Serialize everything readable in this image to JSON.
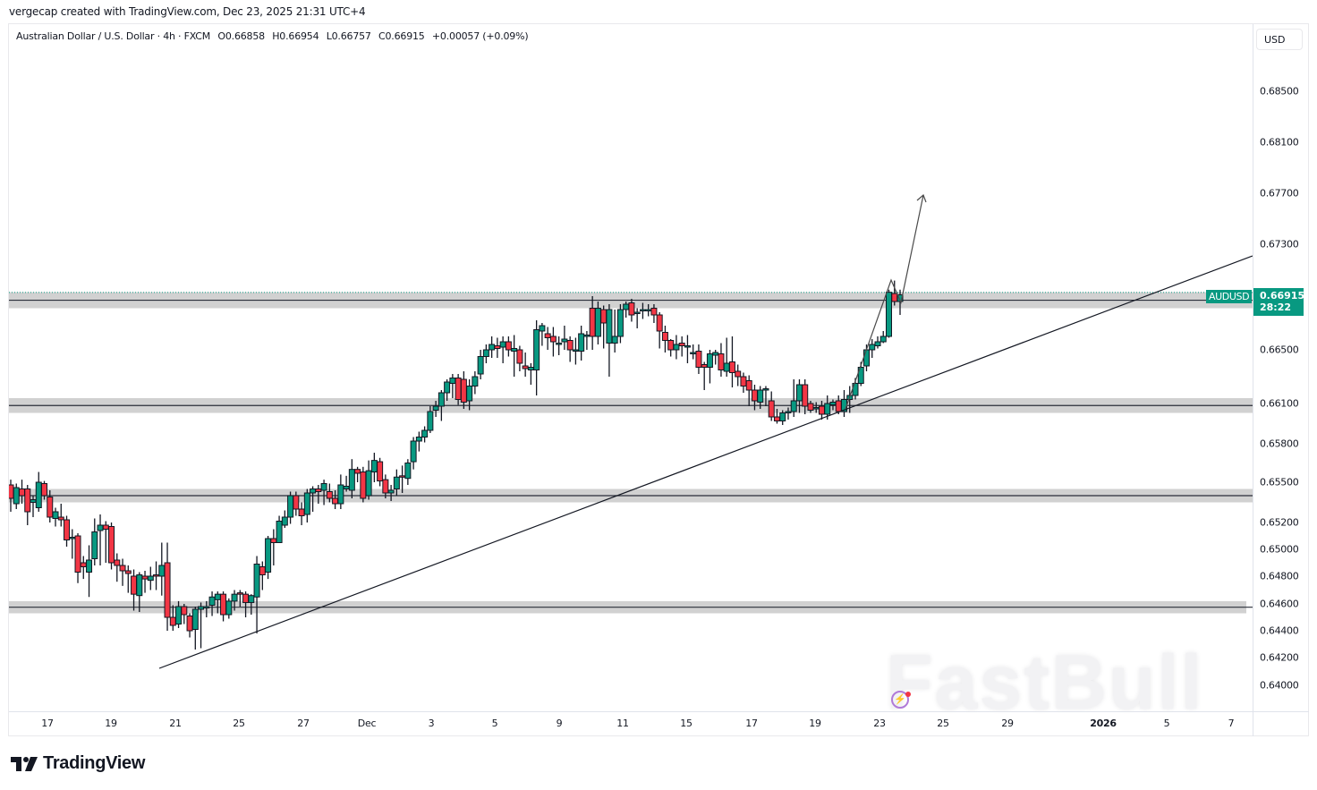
{
  "header": {
    "credit": "vergecap created with TradingView.com, Dec 23, 2025 21:31 UTC+4"
  },
  "legend": {
    "symbol_name": "Australian Dollar / U.S. Dollar · 4h · FXCM",
    "open": "O0.66858",
    "high": "H0.66954",
    "low": "L0.66757",
    "close": "C0.66915",
    "change": "+0.00057 (+0.09%)"
  },
  "price_axis": {
    "currency_button": "USD",
    "labels": [
      "0.68500",
      "0.68100",
      "0.67700",
      "0.67300",
      "0.66500",
      "0.66100",
      "0.65800",
      "0.65500",
      "0.65200",
      "0.65000",
      "0.64800",
      "0.64600",
      "0.64400",
      "0.64200",
      "0.64000"
    ],
    "current_price": "0.66915",
    "countdown": "28:22",
    "symbol_tag": "AUDUSD"
  },
  "time_axis": {
    "labels": [
      "17",
      "19",
      "21",
      "25",
      "27",
      "Dec",
      "3",
      "5",
      "9",
      "11",
      "15",
      "17",
      "19",
      "23",
      "25",
      "29",
      "2026",
      "5",
      "7"
    ],
    "bold_labels": [
      "2026"
    ]
  },
  "colors": {
    "up": "#089981",
    "down": "#f23645",
    "zone": "#d1d1d1",
    "line": "#131722",
    "price_line": "#089981"
  },
  "footer": {
    "brand": "TradingView"
  },
  "watermark": {
    "text": "FastBull"
  },
  "chart_data": {
    "type": "candlestick",
    "title": "Australian Dollar / U.S. Dollar · 4h · FXCM",
    "symbol": "AUDUSD",
    "timeframe": "4h",
    "xlabel": "",
    "ylabel": "USD",
    "ylim": [
      0.6385,
      0.6875
    ],
    "y_ticks": [
      0.64,
      0.642,
      0.644,
      0.646,
      0.648,
      0.65,
      0.652,
      0.655,
      0.658,
      0.661,
      0.665,
      0.669,
      0.673,
      0.677,
      0.681,
      0.685
    ],
    "x_ticks": [
      "17",
      "19",
      "21",
      "25",
      "27",
      "Dec",
      "3",
      "5",
      "9",
      "11",
      "15",
      "17",
      "19",
      "23",
      "25",
      "29",
      "2026",
      "5",
      "7"
    ],
    "last": {
      "open": 0.66858,
      "high": 0.66954,
      "low": 0.66757,
      "close": 0.66915,
      "change": 0.00057,
      "change_pct": 0.09
    },
    "candles": [
      [
        0.6548,
        0.6538,
        0.6552,
        0.6528
      ],
      [
        0.6534,
        0.6546,
        0.6549,
        0.653
      ],
      [
        0.6545,
        0.654,
        0.6552,
        0.6534
      ],
      [
        0.6545,
        0.6528,
        0.6548,
        0.6518
      ],
      [
        0.6535,
        0.6537,
        0.654,
        0.6524
      ],
      [
        0.6531,
        0.655,
        0.6558,
        0.6528
      ],
      [
        0.6549,
        0.654,
        0.6551,
        0.6537
      ],
      [
        0.6539,
        0.6524,
        0.6544,
        0.652
      ],
      [
        0.6523,
        0.6528,
        0.6531,
        0.6517
      ],
      [
        0.6524,
        0.6522,
        0.6534,
        0.6517
      ],
      [
        0.6522,
        0.6507,
        0.6525,
        0.6502
      ],
      [
        0.6508,
        0.6509,
        0.6515,
        0.6493
      ],
      [
        0.651,
        0.6483,
        0.6512,
        0.6475
      ],
      [
        0.649,
        0.6487,
        0.6495,
        0.6478
      ],
      [
        0.6483,
        0.6492,
        0.6503,
        0.6465
      ],
      [
        0.6493,
        0.6513,
        0.6523,
        0.6488
      ],
      [
        0.6514,
        0.6518,
        0.6526,
        0.6488
      ],
      [
        0.6518,
        0.6515,
        0.6521,
        0.649
      ],
      [
        0.6517,
        0.649,
        0.652,
        0.6485
      ],
      [
        0.6492,
        0.6488,
        0.6497,
        0.6476
      ],
      [
        0.6488,
        0.6484,
        0.6493,
        0.6473
      ],
      [
        0.6484,
        0.6482,
        0.6488,
        0.6468
      ],
      [
        0.648,
        0.6467,
        0.6485,
        0.6455
      ],
      [
        0.6466,
        0.6481,
        0.6483,
        0.6454
      ],
      [
        0.648,
        0.6478,
        0.6484,
        0.6468
      ],
      [
        0.6477,
        0.648,
        0.6487,
        0.647
      ],
      [
        0.6481,
        0.648,
        0.6491,
        0.647
      ],
      [
        0.648,
        0.6488,
        0.6505,
        0.6466
      ],
      [
        0.649,
        0.645,
        0.6505,
        0.644
      ],
      [
        0.645,
        0.6444,
        0.6459,
        0.644
      ],
      [
        0.6445,
        0.6458,
        0.6462,
        0.6442
      ],
      [
        0.6458,
        0.6452,
        0.646,
        0.6445
      ],
      [
        0.6451,
        0.644,
        0.6453,
        0.6435
      ],
      [
        0.6441,
        0.6456,
        0.6458,
        0.6426
      ],
      [
        0.6456,
        0.6458,
        0.6461,
        0.6427
      ],
      [
        0.6458,
        0.6458,
        0.6462,
        0.645
      ],
      [
        0.6459,
        0.6465,
        0.6469,
        0.6451
      ],
      [
        0.6463,
        0.6467,
        0.6469,
        0.6453
      ],
      [
        0.6467,
        0.6452,
        0.6469,
        0.6447
      ],
      [
        0.6452,
        0.6462,
        0.6464,
        0.6449
      ],
      [
        0.6462,
        0.6467,
        0.647,
        0.6455
      ],
      [
        0.6468,
        0.6467,
        0.647,
        0.6458
      ],
      [
        0.6467,
        0.6461,
        0.6469,
        0.645
      ],
      [
        0.6461,
        0.6466,
        0.6467,
        0.6452
      ],
      [
        0.6465,
        0.6489,
        0.6495,
        0.6438
      ],
      [
        0.6487,
        0.6481,
        0.6491,
        0.647
      ],
      [
        0.6483,
        0.6508,
        0.651,
        0.6478
      ],
      [
        0.6508,
        0.6505,
        0.6515,
        0.6488
      ],
      [
        0.6505,
        0.6521,
        0.6525,
        0.6505
      ],
      [
        0.6518,
        0.6524,
        0.6529,
        0.6516
      ],
      [
        0.6524,
        0.654,
        0.6543,
        0.6519
      ],
      [
        0.654,
        0.653,
        0.6543,
        0.6525
      ],
      [
        0.653,
        0.6525,
        0.6535,
        0.6518
      ],
      [
        0.6526,
        0.6542,
        0.6545,
        0.652
      ],
      [
        0.6542,
        0.6545,
        0.6547,
        0.6528
      ],
      [
        0.6545,
        0.6543,
        0.6548,
        0.6534
      ],
      [
        0.6544,
        0.6549,
        0.6552,
        0.6533
      ],
      [
        0.6543,
        0.6538,
        0.6549,
        0.6535
      ],
      [
        0.6538,
        0.6534,
        0.6544,
        0.653
      ],
      [
        0.6534,
        0.6548,
        0.6556,
        0.653
      ],
      [
        0.6545,
        0.6547,
        0.6555,
        0.6543
      ],
      [
        0.6544,
        0.656,
        0.6568,
        0.6538
      ],
      [
        0.656,
        0.6557,
        0.6562,
        0.655
      ],
      [
        0.6558,
        0.6538,
        0.6562,
        0.6535
      ],
      [
        0.654,
        0.6559,
        0.6567,
        0.6537
      ],
      [
        0.6558,
        0.6567,
        0.6573,
        0.655
      ],
      [
        0.6566,
        0.6551,
        0.6569,
        0.6547
      ],
      [
        0.6552,
        0.6542,
        0.6556,
        0.6538
      ],
      [
        0.6542,
        0.6544,
        0.6548,
        0.6536
      ],
      [
        0.6545,
        0.6554,
        0.656,
        0.654
      ],
      [
        0.6555,
        0.6554,
        0.6563,
        0.6542
      ],
      [
        0.6553,
        0.6565,
        0.6568,
        0.6548
      ],
      [
        0.6566,
        0.6582,
        0.6585,
        0.656
      ],
      [
        0.6582,
        0.6585,
        0.6589,
        0.6574
      ],
      [
        0.6585,
        0.659,
        0.6593,
        0.6581
      ],
      [
        0.659,
        0.6604,
        0.6608,
        0.6588
      ],
      [
        0.6605,
        0.6608,
        0.6612,
        0.66
      ],
      [
        0.6608,
        0.6618,
        0.662,
        0.6597
      ],
      [
        0.6618,
        0.6626,
        0.6628,
        0.6612
      ],
      [
        0.6625,
        0.6629,
        0.6632,
        0.6614
      ],
      [
        0.6629,
        0.6613,
        0.6632,
        0.6609
      ],
      [
        0.6628,
        0.6611,
        0.6634,
        0.6606
      ],
      [
        0.6612,
        0.6623,
        0.6628,
        0.6605
      ],
      [
        0.6623,
        0.663,
        0.6634,
        0.6617
      ],
      [
        0.6632,
        0.6645,
        0.665,
        0.6628
      ],
      [
        0.6645,
        0.665,
        0.6654,
        0.664
      ],
      [
        0.665,
        0.6654,
        0.666,
        0.6644
      ],
      [
        0.6653,
        0.6651,
        0.6659,
        0.6644
      ],
      [
        0.6652,
        0.6656,
        0.666,
        0.664
      ],
      [
        0.6656,
        0.665,
        0.666,
        0.6645
      ],
      [
        0.6649,
        0.6651,
        0.6661,
        0.663
      ],
      [
        0.665,
        0.664,
        0.6653,
        0.6634
      ],
      [
        0.6638,
        0.6636,
        0.6648,
        0.663
      ],
      [
        0.6635,
        0.6637,
        0.664,
        0.6624
      ],
      [
        0.6635,
        0.6665,
        0.6672,
        0.6616
      ],
      [
        0.6664,
        0.6668,
        0.667,
        0.6653
      ],
      [
        0.6662,
        0.6659,
        0.6667,
        0.665
      ],
      [
        0.666,
        0.6656,
        0.6667,
        0.6645
      ],
      [
        0.6655,
        0.6655,
        0.666,
        0.6646
      ],
      [
        0.6656,
        0.6658,
        0.6668,
        0.665
      ],
      [
        0.6657,
        0.665,
        0.666,
        0.6641
      ],
      [
        0.665,
        0.665,
        0.6659,
        0.6639
      ],
      [
        0.6649,
        0.6662,
        0.6668,
        0.6642
      ],
      [
        0.6661,
        0.6661,
        0.6664,
        0.665
      ],
      [
        0.6681,
        0.666,
        0.669,
        0.665
      ],
      [
        0.666,
        0.6681,
        0.6686,
        0.6654
      ],
      [
        0.668,
        0.667,
        0.6683,
        0.6651
      ],
      [
        0.6655,
        0.668,
        0.6684,
        0.663
      ],
      [
        0.6655,
        0.666,
        0.668,
        0.6648
      ],
      [
        0.666,
        0.668,
        0.6684,
        0.6655
      ],
      [
        0.668,
        0.6684,
        0.6686,
        0.6674
      ],
      [
        0.6685,
        0.6676,
        0.6688,
        0.6671
      ],
      [
        0.6677,
        0.6678,
        0.6681,
        0.6666
      ],
      [
        0.6679,
        0.668,
        0.6685,
        0.6673
      ],
      [
        0.668,
        0.668,
        0.6684,
        0.6675
      ],
      [
        0.6681,
        0.6676,
        0.6684,
        0.667
      ],
      [
        0.6676,
        0.6664,
        0.6678,
        0.6651
      ],
      [
        0.6663,
        0.6657,
        0.6668,
        0.6648
      ],
      [
        0.6657,
        0.665,
        0.6658,
        0.6645
      ],
      [
        0.665,
        0.6654,
        0.6661,
        0.6643
      ],
      [
        0.6655,
        0.6653,
        0.666,
        0.6645
      ],
      [
        0.6653,
        0.6653,
        0.6661,
        0.664
      ],
      [
        0.6648,
        0.6648,
        0.6654,
        0.6643
      ],
      [
        0.6649,
        0.6637,
        0.6654,
        0.6632
      ],
      [
        0.6639,
        0.6637,
        0.6641,
        0.662
      ],
      [
        0.6637,
        0.6647,
        0.665,
        0.6625
      ],
      [
        0.6646,
        0.6648,
        0.665,
        0.6639
      ],
      [
        0.6647,
        0.6635,
        0.6655,
        0.663
      ],
      [
        0.6634,
        0.664,
        0.6659,
        0.663
      ],
      [
        0.6641,
        0.6633,
        0.666,
        0.6622
      ],
      [
        0.6634,
        0.663,
        0.6639,
        0.6623
      ],
      [
        0.663,
        0.6623,
        0.6633,
        0.6618
      ],
      [
        0.6627,
        0.662,
        0.6631,
        0.6608
      ],
      [
        0.662,
        0.6612,
        0.6624,
        0.6605
      ],
      [
        0.6611,
        0.662,
        0.6623,
        0.6606
      ],
      [
        0.662,
        0.6621,
        0.6623,
        0.6608
      ],
      [
        0.6612,
        0.66,
        0.6619,
        0.6597
      ],
      [
        0.66,
        0.6597,
        0.6606,
        0.6595
      ],
      [
        0.6597,
        0.6603,
        0.6605,
        0.6594
      ],
      [
        0.6603,
        0.6604,
        0.6607,
        0.6598
      ],
      [
        0.6604,
        0.6612,
        0.6628,
        0.66
      ],
      [
        0.6612,
        0.6624,
        0.6628,
        0.6603
      ],
      [
        0.6624,
        0.6608,
        0.6628,
        0.6602
      ],
      [
        0.661,
        0.6605,
        0.6612,
        0.6603
      ],
      [
        0.6606,
        0.6607,
        0.6611,
        0.6603
      ],
      [
        0.6608,
        0.6602,
        0.6612,
        0.6598
      ],
      [
        0.6602,
        0.661,
        0.6616,
        0.6598
      ],
      [
        0.6609,
        0.6611,
        0.6613,
        0.6605
      ],
      [
        0.6612,
        0.6604,
        0.6616,
        0.6602
      ],
      [
        0.6604,
        0.6613,
        0.662,
        0.66
      ],
      [
        0.6613,
        0.6616,
        0.6623,
        0.6603
      ],
      [
        0.6616,
        0.6625,
        0.6629,
        0.6613
      ],
      [
        0.6625,
        0.6637,
        0.6641,
        0.6623
      ],
      [
        0.6638,
        0.665,
        0.6654,
        0.6634
      ],
      [
        0.665,
        0.6654,
        0.6658,
        0.6644
      ],
      [
        0.6653,
        0.6656,
        0.666,
        0.6651
      ],
      [
        0.6656,
        0.666,
        0.6664,
        0.6655
      ],
      [
        0.666,
        0.6693,
        0.6695,
        0.6659
      ],
      [
        0.6692,
        0.6686,
        0.6702,
        0.6683
      ],
      [
        0.6686,
        0.6691,
        0.6695,
        0.6676
      ]
    ],
    "annotations": [
      {
        "type": "zone",
        "label": "resistance",
        "range": [
          0.6681,
          0.6693
        ]
      },
      {
        "type": "zone",
        "label": "support",
        "range": [
          0.6603,
          0.6614
        ]
      },
      {
        "type": "zone",
        "label": "support",
        "range": [
          0.6535,
          0.6545
        ]
      },
      {
        "type": "zone",
        "label": "support",
        "range": [
          0.6453,
          0.6462
        ]
      },
      {
        "type": "trendline",
        "from": [
          178,
          747
        ],
        "to": [
          1400,
          286
        ]
      },
      {
        "type": "path",
        "label": "projected move",
        "points": [
          [
            945,
            457
          ],
          [
            996,
            313
          ],
          [
            1007,
            338
          ],
          [
            1032,
            218
          ]
        ]
      },
      {
        "type": "hline",
        "label": "current price",
        "value": 0.66915,
        "style": "dotted"
      }
    ]
  }
}
